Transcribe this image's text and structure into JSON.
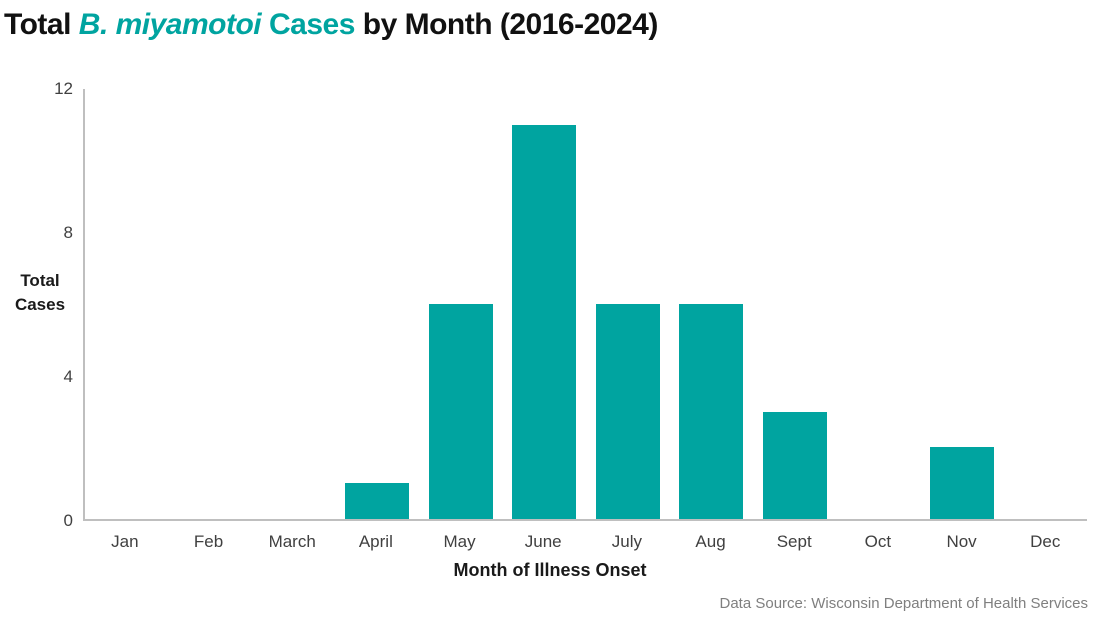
{
  "title": {
    "segments": [
      {
        "text": "Total ",
        "style": "black"
      },
      {
        "text": "B. miyamotoi",
        "style": "teal-italic"
      },
      {
        "text": " Cases",
        "style": "teal"
      },
      {
        "text": " by Month (2016-2024)",
        "style": "black"
      }
    ],
    "full_text": "Total B. miyamotoi Cases by Month (2016-2024)"
  },
  "chart_data": {
    "type": "bar",
    "title": "Total B. miyamotoi Cases by Month (2016-2024)",
    "categories": [
      "Jan",
      "Feb",
      "March",
      "April",
      "May",
      "June",
      "July",
      "Aug",
      "Sept",
      "Oct",
      "Nov",
      "Dec"
    ],
    "values": [
      0,
      0,
      0,
      1,
      6,
      11,
      6,
      6,
      3,
      0,
      2,
      0
    ],
    "xlabel": "Month of Illness Onset",
    "ylabel": "Total Cases",
    "ylim": [
      0,
      12
    ],
    "yticks": [
      0,
      4,
      8,
      12
    ],
    "grid": false,
    "legend": false,
    "bar_color": "#00A4A0"
  },
  "y_axis_title_lines": [
    "Total",
    "Cases"
  ],
  "footer": "Data Source: Wisconsin Department of Health Services",
  "colors": {
    "teal": "#00A4A0",
    "axis_line": "#BFBFBF",
    "tick_text": "#404040",
    "label_text": "#1a1a1a",
    "footer_text": "#7F7F7F"
  }
}
